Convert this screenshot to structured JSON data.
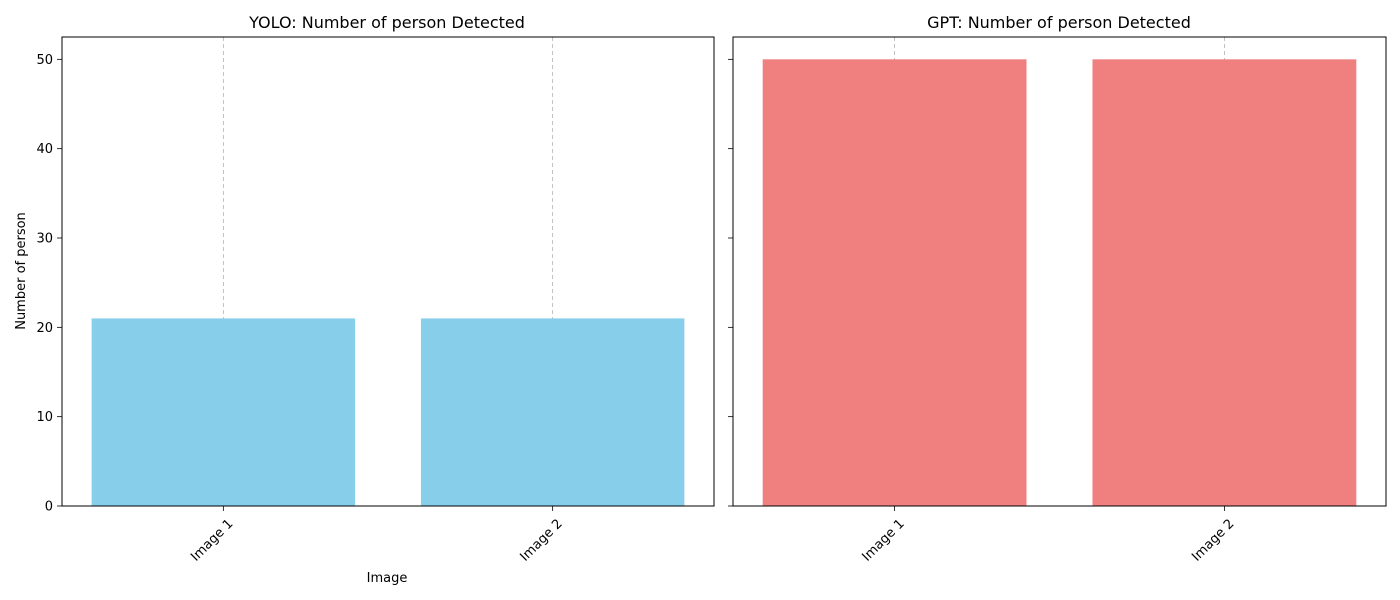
{
  "chart_data": [
    {
      "type": "bar",
      "title": "YOLO: Number of person Detected",
      "xlabel": "Image",
      "ylabel": "Number of person",
      "categories": [
        "Image 1",
        "Image 2"
      ],
      "values": [
        21,
        21
      ],
      "ylim": [
        0,
        52.5
      ],
      "yticks": [
        "0",
        "10",
        "20",
        "30",
        "40",
        "50"
      ],
      "color": "#87ceeb",
      "grid": "x-dashed",
      "xtick_rotation": 45
    },
    {
      "type": "bar",
      "title": "GPT: Number of person Detected",
      "xlabel": "",
      "ylabel": "",
      "categories": [
        "Image 1",
        "Image 2"
      ],
      "values": [
        50,
        50
      ],
      "ylim": [
        0,
        52.5
      ],
      "yticks": [
        "",
        "",
        "",
        "",
        "",
        ""
      ],
      "color": "#f08080",
      "grid": "x-dashed",
      "xtick_rotation": 45,
      "sharey": true
    }
  ]
}
